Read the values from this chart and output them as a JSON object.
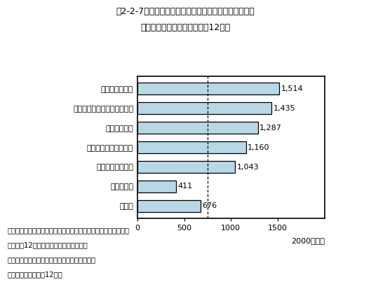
{
  "title_line1": "第2-2-7図　会社等における従業員１万人当たりの研究",
  "title_line2": "者数（上位５業種）　（平成12年）",
  "categories": [
    "ソフトウェア業",
    "通信・電子・電気計測器工業",
    "精密機械工業",
    "医薬品以外の化学工業",
    "電気機械器具工業",
    "その他業種",
    "全産業"
  ],
  "values": [
    1514,
    1435,
    1287,
    1160,
    1043,
    411,
    676
  ],
  "bar_color": "#b8d8e8",
  "bar_edge_color": "#000000",
  "xlim": [
    0,
    2000
  ],
  "xticks": [
    0,
    500,
    1000,
    1500
  ],
  "xlabel_extra": "2000（人）",
  "dashed_line_x": 750,
  "note_line1": "注）「従業員１万人当たりの研究者数」の従業員及び研究者数は",
  "note_line2": "　　平成12年４月１日現在の値である。",
  "note_line3": "資料：総務省統計局「科学技術研究調査報告」",
  "note_line4": "（参照：付属資料（12））",
  "value_labels": [
    "1,514",
    "1,435",
    "1,287",
    "1,160",
    "1,043",
    "411",
    "676"
  ],
  "bg_color": "#ffffff"
}
